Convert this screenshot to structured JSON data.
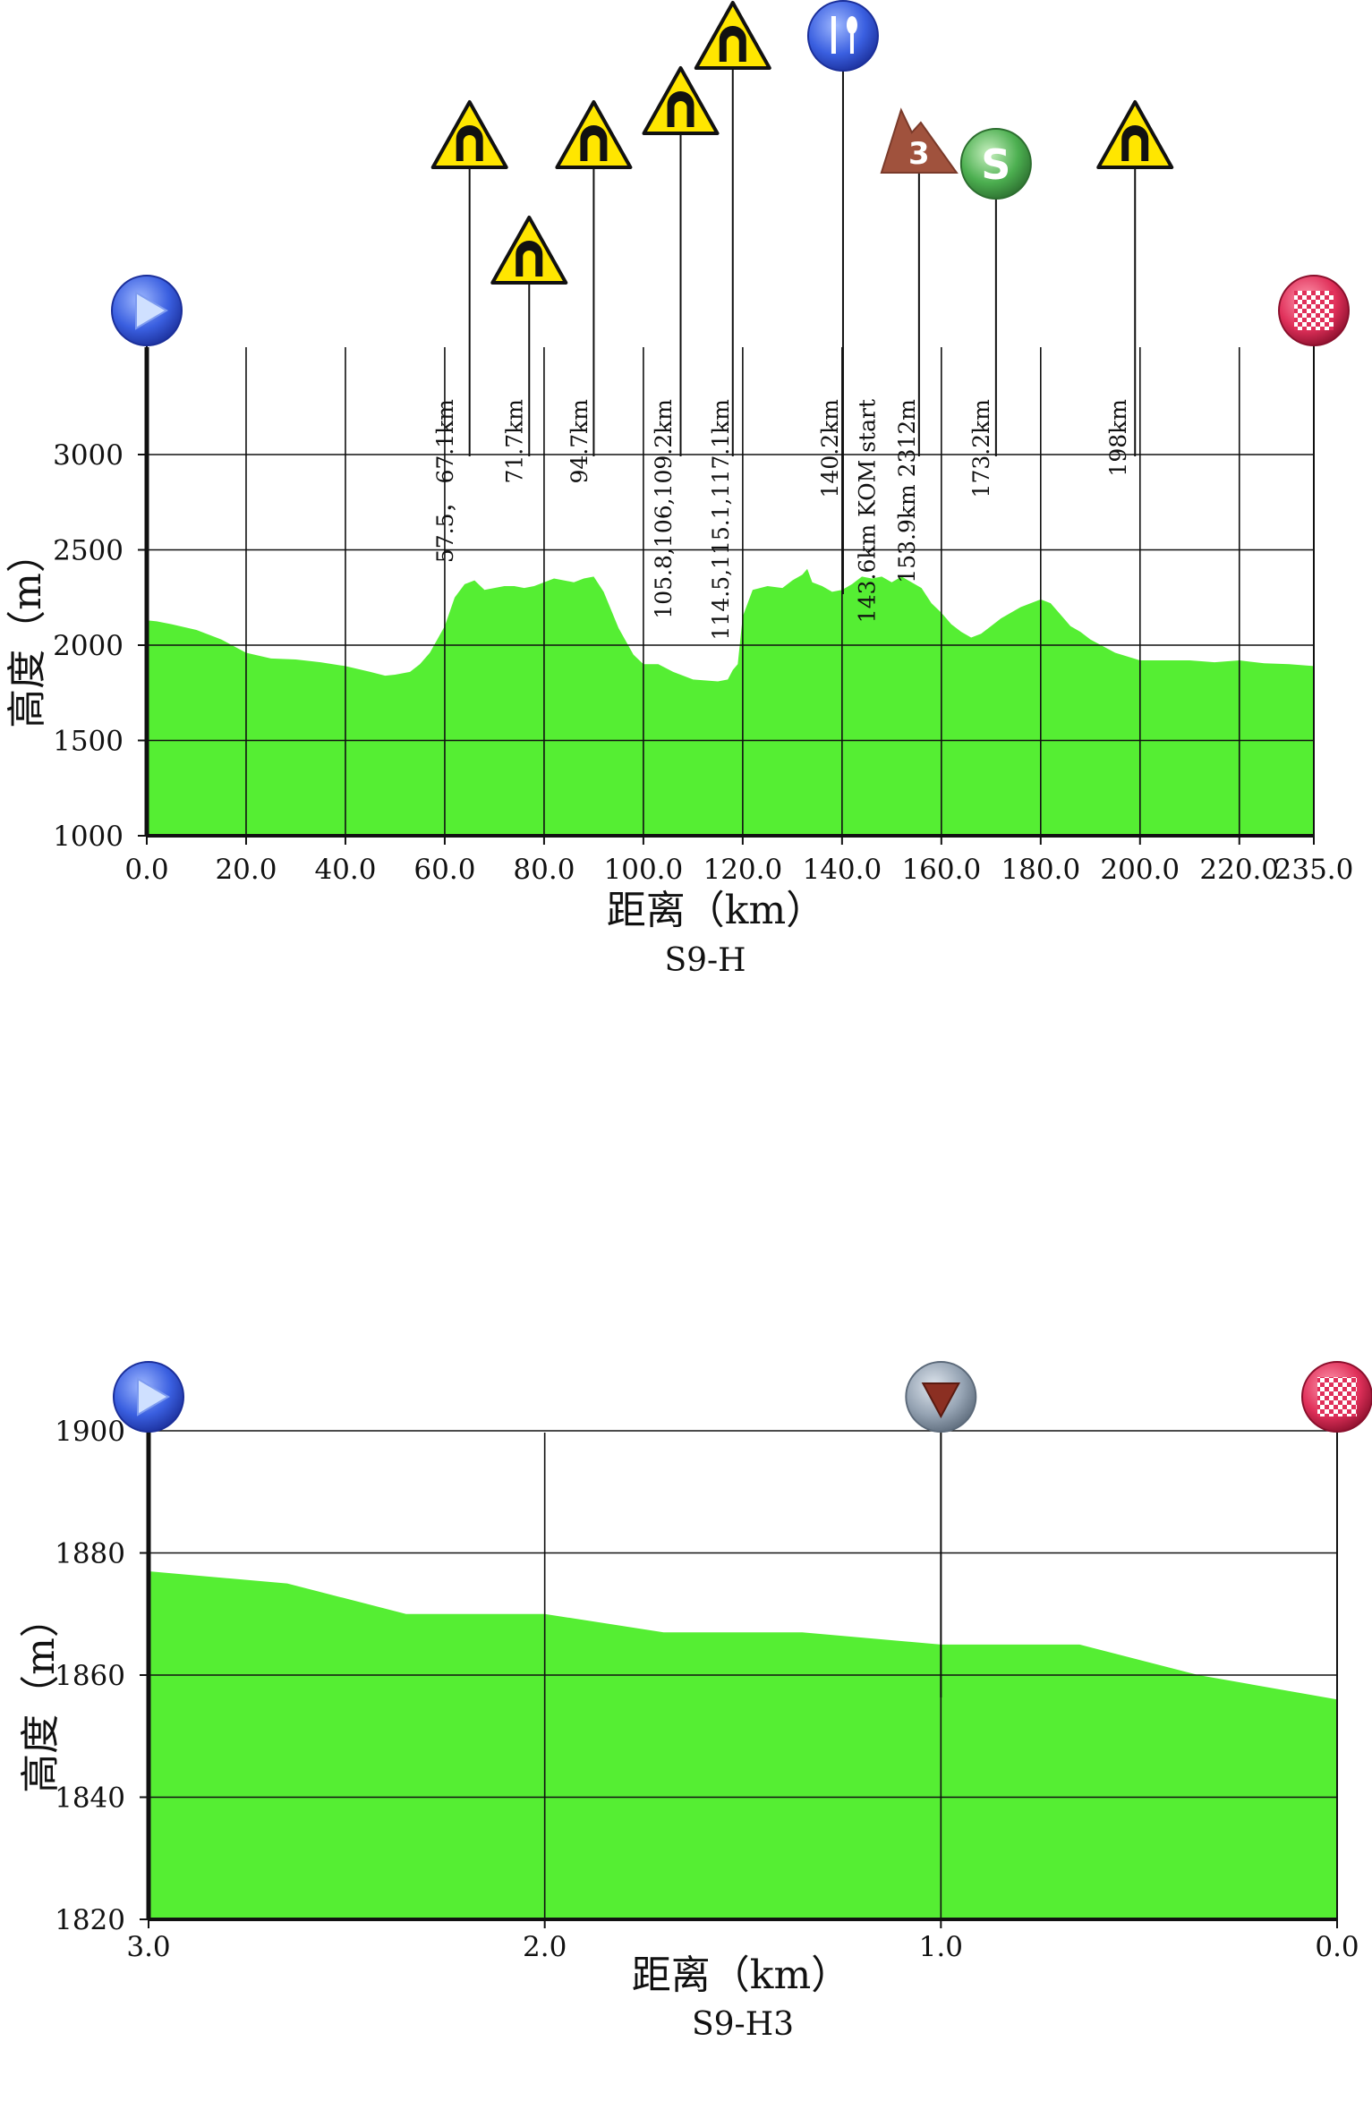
{
  "chart_data": [
    {
      "type": "area",
      "title": "S9-H",
      "xlabel": "距离（km）",
      "ylabel": "高度（m）",
      "xlim": [
        0,
        235
      ],
      "ylim": [
        1000,
        3000
      ],
      "x_tick_values": [
        0,
        20,
        40,
        60,
        80,
        100,
        120,
        140,
        160,
        180,
        200,
        220,
        235
      ],
      "x_tick_labels": [
        "0.0",
        "20.0",
        "40.0",
        "60.0",
        "80.0",
        "100.0",
        "120.0",
        "140.0",
        "160.0",
        "180.0",
        "200.0",
        "220.0",
        "235.0"
      ],
      "y_tick_values": [
        1000,
        1500,
        2000,
        2500,
        3000
      ],
      "y_tick_labels": [
        "1000",
        "1500",
        "2000",
        "2500",
        "3000"
      ],
      "fill_color": "#55ee33",
      "grid": true,
      "series": [
        {
          "x": [
            0,
            2,
            5,
            10,
            15,
            20,
            25,
            30,
            35,
            40,
            45,
            48,
            50,
            53,
            55,
            57,
            60,
            62,
            64,
            66,
            68,
            70,
            72,
            74,
            76,
            78,
            80,
            82,
            84,
            86,
            88,
            90,
            92,
            95,
            98,
            100,
            103,
            106,
            110,
            115,
            117,
            118,
            119,
            120,
            122,
            125,
            128,
            130,
            132,
            133,
            134,
            136,
            138,
            140,
            142,
            144,
            146,
            148,
            150,
            152,
            154,
            156,
            158,
            160,
            162,
            164,
            166,
            168,
            170,
            172,
            174,
            176,
            178,
            180,
            182,
            184,
            186,
            188,
            190,
            195,
            200,
            205,
            210,
            215,
            220,
            225,
            230,
            235
          ],
          "y": [
            2130,
            2125,
            2110,
            2080,
            2030,
            1960,
            1930,
            1925,
            1910,
            1890,
            1860,
            1840,
            1845,
            1860,
            1900,
            1960,
            2100,
            2250,
            2320,
            2340,
            2290,
            2300,
            2310,
            2310,
            2300,
            2310,
            2330,
            2350,
            2340,
            2330,
            2350,
            2360,
            2280,
            2090,
            1950,
            1900,
            1900,
            1860,
            1820,
            1810,
            1820,
            1870,
            1900,
            2150,
            2290,
            2310,
            2300,
            2340,
            2370,
            2400,
            2330,
            2310,
            2280,
            2290,
            2320,
            2360,
            2350,
            2360,
            2330,
            2360,
            2330,
            2300,
            2220,
            2170,
            2110,
            2070,
            2040,
            2060,
            2100,
            2140,
            2170,
            2200,
            2220,
            2240,
            2220,
            2160,
            2100,
            2070,
            2030,
            1960,
            1920,
            1920,
            1920,
            1910,
            1920,
            1905,
            1900,
            1890
          ]
        }
      ],
      "markers": [
        {
          "km": 0,
          "icon": "start-icon"
        },
        {
          "km": 235,
          "icon": "finish-icon"
        },
        {
          "km": 65,
          "icon": "tunnel-icon"
        },
        {
          "km": 77,
          "icon": "tunnel-icon"
        },
        {
          "km": 90,
          "icon": "tunnel-icon"
        },
        {
          "km": 107.5,
          "icon": "tunnel-icon"
        },
        {
          "km": 118,
          "icon": "tunnel-icon"
        },
        {
          "km": 140.2,
          "icon": "feed-zone-icon"
        },
        {
          "km": 155.5,
          "icon": "kom-category-3-icon",
          "label": "3"
        },
        {
          "km": 171,
          "icon": "sprint-icon",
          "label": "S"
        },
        {
          "km": 199,
          "icon": "tunnel-icon"
        }
      ],
      "annotations": [
        {
          "km": 60,
          "text": "57.5，  67.1km"
        },
        {
          "km": 74,
          "text": "71.7km"
        },
        {
          "km": 87,
          "text": "94.7km"
        },
        {
          "km": 104,
          "text": "105.8,106,109.2km"
        },
        {
          "km": 115.5,
          "text": "114.5,115.1,117.1km"
        },
        {
          "km": 137.5,
          "text": "140.2km"
        },
        {
          "km": 145,
          "text": "143.6km KOM start"
        },
        {
          "km": 153,
          "text": "153.9km  2312m"
        },
        {
          "km": 168,
          "text": "173.2km"
        },
        {
          "km": 195.5,
          "text": "198km"
        }
      ]
    },
    {
      "type": "area",
      "title": "S9-H3",
      "xlabel": "距离（km）",
      "ylabel": "高度（m）",
      "xlim": [
        3,
        0
      ],
      "ylim": [
        1820,
        1900
      ],
      "x_tick_values": [
        3,
        2,
        1,
        0
      ],
      "x_tick_labels": [
        "3.0",
        "2.0",
        "1.0",
        "0.0"
      ],
      "y_tick_values": [
        1820,
        1840,
        1860,
        1880,
        1900
      ],
      "y_tick_labels": [
        "1820",
        "1840",
        "1860",
        "1880",
        "1900"
      ],
      "fill_color": "#55ee33",
      "grid": true,
      "series": [
        {
          "x": [
            3.0,
            2.65,
            2.35,
            2.0,
            1.7,
            1.35,
            1.0,
            0.65,
            0.35,
            0.0
          ],
          "y": [
            1877,
            1875,
            1870,
            1870,
            1867,
            1867,
            1865,
            1865,
            1860,
            1856
          ]
        }
      ],
      "markers": [
        {
          "km": 3.0,
          "icon": "start-icon"
        },
        {
          "km": 1.0,
          "icon": "last-km-icon"
        },
        {
          "km": 0.0,
          "icon": "finish-icon"
        }
      ]
    }
  ]
}
